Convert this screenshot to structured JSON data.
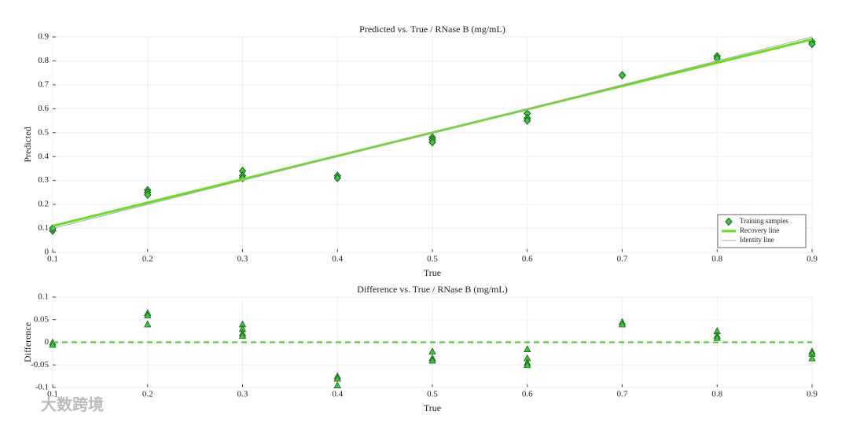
{
  "chart_data": [
    {
      "type": "scatter",
      "title": "Predicted vs. True / RNase B (mg/mL)",
      "x_label": "True",
      "y_label": "Predicted",
      "xlim": [
        0.1,
        0.9
      ],
      "ylim": [
        0,
        0.9
      ],
      "xticks": [
        0.1,
        0.2,
        0.3,
        0.4,
        0.5,
        0.6,
        0.7,
        0.8,
        0.9
      ],
      "yticks": [
        0,
        0.1,
        0.2,
        0.3,
        0.4,
        0.5,
        0.6,
        0.7,
        0.8,
        0.9
      ],
      "grid": true,
      "legend": "lower right",
      "series": [
        {
          "name": "Training samples",
          "mode": "markers",
          "marker": "diamond",
          "color": "#3cc83c",
          "x": [
            0.1,
            0.1,
            0.2,
            0.2,
            0.2,
            0.3,
            0.3,
            0.3,
            0.4,
            0.4,
            0.5,
            0.5,
            0.5,
            0.6,
            0.6,
            0.6,
            0.7,
            0.7,
            0.8,
            0.8,
            0.9,
            0.9
          ],
          "values": [
            0.09,
            0.1,
            0.26,
            0.25,
            0.24,
            0.34,
            0.32,
            0.31,
            0.32,
            0.31,
            0.48,
            0.47,
            0.46,
            0.58,
            0.56,
            0.55,
            0.74,
            0.74,
            0.82,
            0.81,
            0.88,
            0.87
          ]
        },
        {
          "name": "Recovery line",
          "mode": "line",
          "width": 3,
          "color": "#66dd22",
          "x": [
            0.1,
            0.9
          ],
          "values": [
            0.11,
            0.89
          ]
        },
        {
          "name": "Identity line",
          "mode": "line",
          "width": 1,
          "color": "#aaaaaa",
          "x": [
            0.1,
            0.9
          ],
          "values": [
            0.1,
            0.9
          ]
        }
      ]
    },
    {
      "type": "scatter",
      "title": "Difference vs. True / RNase B (mg/mL)",
      "x_label": "True",
      "y_label": "Difference",
      "xlim": [
        0.1,
        0.9
      ],
      "ylim": [
        -0.1,
        0.1
      ],
      "xticks": [
        0.1,
        0.2,
        0.3,
        0.4,
        0.5,
        0.6,
        0.7,
        0.8,
        0.9
      ],
      "yticks": [
        -0.1,
        -0.05,
        0,
        0.05,
        0.1
      ],
      "grid": true,
      "series": [
        {
          "mode": "markers",
          "marker": "triangle",
          "color": "#3cc83c",
          "x": [
            0.1,
            0.1,
            0.2,
            0.2,
            0.2,
            0.3,
            0.3,
            0.3,
            0.3,
            0.4,
            0.4,
            0.4,
            0.5,
            0.5,
            0.5,
            0.6,
            0.6,
            0.6,
            0.6,
            0.7,
            0.7,
            0.8,
            0.8,
            0.8,
            0.9,
            0.9,
            0.9
          ],
          "values": [
            0,
            -0.005,
            0.065,
            0.06,
            0.04,
            0.04,
            0.03,
            0.02,
            0.015,
            -0.075,
            -0.08,
            -0.095,
            -0.02,
            -0.035,
            -0.04,
            -0.015,
            -0.035,
            -0.045,
            -0.05,
            0.045,
            0.04,
            0.025,
            0.015,
            0.01,
            -0.02,
            -0.025,
            -0.035
          ]
        },
        {
          "mode": "line",
          "dash": true,
          "width": 2,
          "color": "#44cc22",
          "x": [
            0.1,
            0.9
          ],
          "values": [
            0,
            0
          ]
        }
      ]
    }
  ],
  "watermark": "大数跨境"
}
